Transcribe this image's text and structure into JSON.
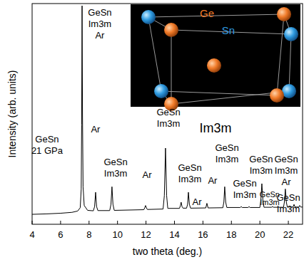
{
  "chart_data": {
    "type": "line",
    "x_label": "two theta (deg.)",
    "y_label": "Intensity (arb. units)",
    "xlim": [
      4,
      23
    ],
    "ylim": [
      0,
      100
    ],
    "xticks": [
      4,
      6,
      8,
      10,
      12,
      14,
      16,
      18,
      20,
      22
    ],
    "tick_labels": "x",
    "grid": false,
    "color": "#000000",
    "x": [
      4.0,
      5.0,
      6.0,
      6.8,
      7.2,
      7.38,
      7.45,
      7.48,
      7.51,
      7.54,
      7.58,
      7.66,
      7.9,
      8.3,
      8.39,
      8.46,
      8.53,
      8.62,
      9.45,
      9.54,
      9.61,
      9.68,
      9.77,
      11.85,
      11.92,
      11.97,
      12.03,
      12.1,
      13.2,
      13.29,
      13.37,
      13.45,
      13.53,
      14.35,
      14.42,
      14.47,
      14.53,
      14.6,
      14.85,
      14.92,
      14.98,
      15.05,
      15.13,
      16.2,
      16.28,
      16.36,
      17.4,
      17.47,
      17.53,
      17.6,
      17.68,
      18.62,
      18.69,
      18.76,
      19.17,
      19.24,
      19.31,
      20.0,
      20.07,
      20.14,
      20.21,
      20.29,
      20.82,
      20.89,
      20.96,
      21.66,
      21.72,
      21.79,
      21.86,
      21.93,
      22.33,
      22.4,
      22.47,
      22.73,
      22.8,
      22.87,
      23.0
    ],
    "values": [
      4.5,
      4.7,
      5.0,
      5.4,
      6.0,
      7.5,
      16,
      45,
      99,
      50,
      17,
      8.5,
      6.3,
      6.1,
      8,
      14.5,
      8,
      6.2,
      6.2,
      9,
      17,
      9,
      6.3,
      6.6,
      7.6,
      8.5,
      7.4,
      6.7,
      6.9,
      13,
      34.5,
      13,
      7.2,
      7.2,
      8.5,
      10,
      8,
      7.3,
      7.3,
      9,
      14.5,
      9,
      7.3,
      7.4,
      9.5,
      7.4,
      7.5,
      10,
      17,
      10,
      7.6,
      7.6,
      8,
      7.6,
      7.6,
      8,
      7.6,
      7.6,
      11,
      18.4,
      11,
      7.7,
      7.7,
      8,
      7.7,
      7.7,
      10,
      16,
      10,
      7.8,
      7.8,
      9,
      7.8,
      7.8,
      8.5,
      7.8,
      7.8
    ],
    "annotations": [
      {
        "text": [
          "GeSn",
          "21 GPa"
        ],
        "x": 5.05,
        "y": 37.1
      },
      {
        "text": [
          "GeSn",
          "Im3m",
          "Ar"
        ],
        "x": 8.76,
        "y": 94.5
      },
      {
        "text": [
          "Ar"
        ],
        "x": 8.46,
        "y": 41.6
      },
      {
        "text": [
          "GeSn",
          "Im3m"
        ],
        "x": 9.87,
        "y": 26.8
      },
      {
        "text": [
          "Ar"
        ],
        "x": 12.07,
        "y": 21.0
      },
      {
        "text": [
          "GeSn",
          "Im3m"
        ],
        "x": 13.58,
        "y": 49.4
      },
      {
        "text": [
          "GeSn",
          "Im3m"
        ],
        "x": 15.08,
        "y": 24.2
      },
      {
        "text": [
          "Ar"
        ],
        "x": 15.58,
        "y": 8.7
      },
      {
        "text": [
          "Ar"
        ],
        "x": 16.68,
        "y": 18.4
      },
      {
        "text": [
          "GeSn",
          "Im3m"
        ],
        "x": 17.69,
        "y": 33.2
      },
      {
        "text": [
          "GeSn",
          "Im3m"
        ],
        "x": 18.94,
        "y": 17.1
      },
      {
        "text": [
          "GeSn",
          "Im3m"
        ],
        "x": 20.09,
        "y": 28.1
      },
      {
        "text": [
          "GeSn",
          "Im3m"
        ],
        "x": 20.69,
        "y": 12.26
      },
      {
        "text": [
          "GeSn",
          "Im3m",
          "Ar"
        ],
        "x": 21.85,
        "y": 28.1
      },
      {
        "text": [
          "GeSn",
          "Im3m"
        ],
        "x": 22.0,
        "y": 10.6
      }
    ],
    "inset": {
      "title": "Im3m",
      "labels": [
        {
          "text": "Ge",
          "color": "#f07a28"
        },
        {
          "text": "Sn",
          "color": "#2f9be0"
        }
      ]
    }
  }
}
